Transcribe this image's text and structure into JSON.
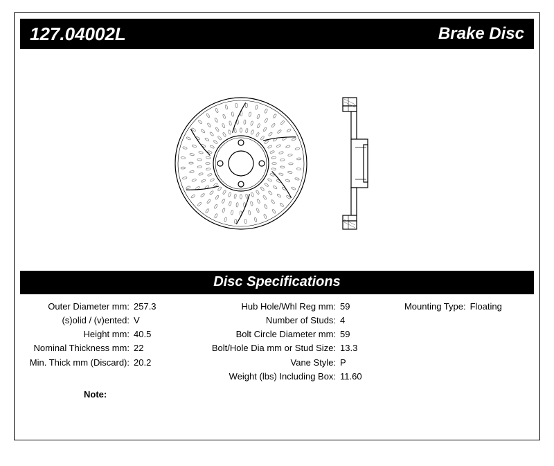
{
  "header": {
    "part_number": "127.04002L",
    "product_type": "Brake Disc"
  },
  "spec_header": "Disc Specifications",
  "specs": {
    "col1": [
      {
        "label": "Outer Diameter mm:",
        "value": "257.3"
      },
      {
        "label": "(s)olid / (v)ented:",
        "value": "V"
      },
      {
        "label": "Height mm:",
        "value": "40.5"
      },
      {
        "label": "Nominal Thickness mm:",
        "value": "22"
      },
      {
        "label": "Min. Thick mm (Discard):",
        "value": "20.2"
      }
    ],
    "col2": [
      {
        "label": "Hub Hole/Whl Reg mm:",
        "value": "59"
      },
      {
        "label": "Number of Studs:",
        "value": "4"
      },
      {
        "label": "Bolt Circle Diameter mm:",
        "value": "59"
      },
      {
        "label": "Bolt/Hole Dia mm or Stud Size:",
        "value": "13.3"
      },
      {
        "label": "Vane Style:",
        "value": "P"
      },
      {
        "label": "Weight (lbs) Including Box:",
        "value": "11.60"
      }
    ],
    "col3": [
      {
        "label": "Mounting Type:",
        "value": "Floating"
      }
    ]
  },
  "note_label": "Note:",
  "diagram": {
    "stroke": "#000000",
    "fill": "#ffffff",
    "disc_outer_r": 95,
    "disc_inner_r": 38,
    "hub_r": 18,
    "bolt_circle_r": 30,
    "bolt_r": 4,
    "num_bolts": 4,
    "num_vanes": 36
  }
}
